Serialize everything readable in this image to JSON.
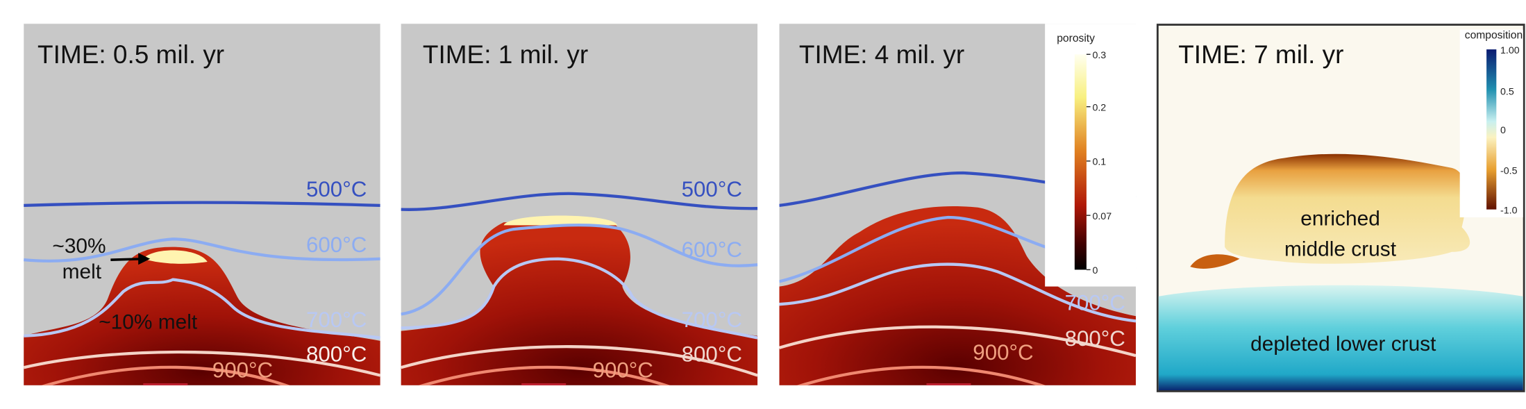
{
  "panels": [
    {
      "time": "TIME: 0.5 mil. yr",
      "isotherms": [
        "500°C",
        "600°C",
        "700°C",
        "800°C",
        "900°C"
      ],
      "annotations": [
        "~30%",
        "melt",
        "~10% melt"
      ]
    },
    {
      "time": "TIME: 1 mil. yr",
      "isotherms": [
        "500°C",
        "600°C",
        "700°C",
        "800°C",
        "900°C"
      ]
    },
    {
      "time": "TIME: 4 mil. yr",
      "isotherms": [
        "700°C",
        "800°C",
        "900°C"
      ]
    },
    {
      "time": "TIME: 7 mil. yr",
      "annotations": [
        "enriched",
        "middle crust",
        "depleted lower crust"
      ]
    }
  ],
  "colorbars": [
    {
      "title": "porosity",
      "ticks": [
        "0.3",
        "0.2",
        "0.1",
        "0.07",
        "0"
      ]
    },
    {
      "title": "composition",
      "ticks": [
        "1.00",
        "0.5",
        "0",
        "-0.5",
        "-1.0"
      ]
    }
  ]
}
